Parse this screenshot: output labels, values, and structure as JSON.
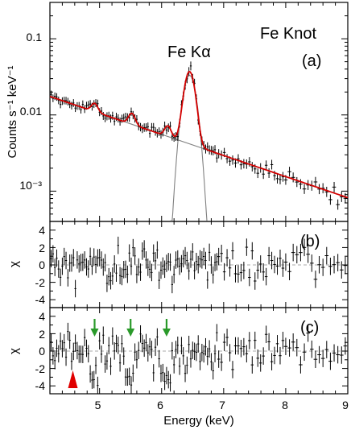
{
  "chart_data": [
    {
      "type": "line",
      "panel": "(a)",
      "annotations": [
        "Fe Knot",
        "Fe Kα"
      ],
      "ylabel": "Counts s⁻¹ keV⁻¹",
      "yscale": "log",
      "xlim": [
        4.2,
        9.0
      ],
      "ylim": [
        0.0004,
        0.3
      ],
      "yticks": [
        {
          "value": 0.1,
          "label": "0.1"
        },
        {
          "value": 0.01,
          "label": "0.01"
        },
        {
          "value": 0.001,
          "label": "10⁻³"
        }
      ],
      "colors": {
        "model": "#d40000",
        "component": "#808080",
        "data": "#000000"
      },
      "series": [],
      "continuum": {
        "x": [
          4.2,
          9.0
        ],
        "y": [
          0.0175,
          0.00082
        ]
      },
      "line_component": {
        "center": 6.45,
        "sigma": 0.075,
        "peak": 0.033,
        "x_range": [
          6.14,
          6.73
        ]
      },
      "model_bumps": [
        {
          "center": 4.92,
          "sigma": 0.05,
          "amp": 0.0032
        },
        {
          "center": 5.52,
          "sigma": 0.05,
          "amp": 0.003
        },
        {
          "center": 6.1,
          "sigma": 0.05,
          "amp": 0.002
        }
      ]
    },
    {
      "type": "scatter",
      "panel": "(b)",
      "ylabel": "χ",
      "ylim": [
        -5,
        5
      ],
      "yticks": [
        -4,
        -2,
        0,
        2,
        4
      ],
      "reference_line": 0
    },
    {
      "type": "scatter",
      "panel": "(c)",
      "xlabel": "Energy (keV)",
      "ylabel": "χ",
      "xlim": [
        4.2,
        9.0
      ],
      "xticks": [
        5,
        6,
        7,
        8,
        9
      ],
      "ylim": [
        -5,
        5
      ],
      "yticks": [
        -4,
        -2,
        0,
        2,
        4
      ],
      "reference_line": 0,
      "green_arrows_at_energy": [
        4.92,
        5.5,
        6.08
      ],
      "red_marker_at_energy": 4.57
    }
  ]
}
